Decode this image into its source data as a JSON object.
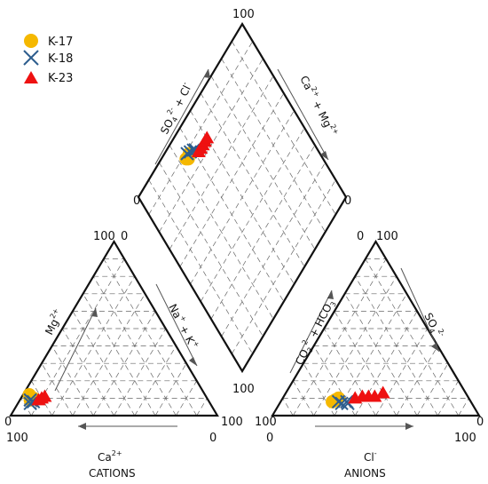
{
  "chart_data": {
    "type": "scatter",
    "subtype": "piper-diagram",
    "grid": true,
    "legend_position": "top-left",
    "series": [
      {
        "name": "K-17",
        "marker": "circle",
        "color": "#f5b800",
        "cations": [
          {
            "Ca": 84,
            "Mg": 10
          },
          {
            "Ca": 86,
            "Mg": 9
          },
          {
            "Ca": 85,
            "Mg": 12
          }
        ],
        "anions": [
          {
            "Cl": 26,
            "SO4": 9
          },
          {
            "Cl": 25,
            "SO4": 8
          },
          {
            "Cl": 27,
            "SO4": 10
          }
        ],
        "diamond": [
          {
            "SO4Cl": 35,
            "CaMg": 87
          },
          {
            "SO4Cl": 34,
            "CaMg": 88
          },
          {
            "SO4Cl": 37,
            "CaMg": 88
          }
        ]
      },
      {
        "name": "K-18",
        "marker": "x",
        "color": "#2e5e8e",
        "cations": [
          {
            "Ca": 85,
            "Mg": 8
          },
          {
            "Ca": 87,
            "Mg": 7
          },
          {
            "Ca": 86,
            "Mg": 9
          }
        ],
        "anions": [
          {
            "Cl": 28,
            "SO4": 8
          },
          {
            "Cl": 30,
            "SO4": 7
          },
          {
            "Cl": 32,
            "SO4": 8
          },
          {
            "Cl": 33,
            "SO4": 7
          }
        ],
        "diamond": [
          {
            "SO4Cl": 36,
            "CaMg": 89
          },
          {
            "SO4Cl": 38,
            "CaMg": 88
          },
          {
            "SO4Cl": 40,
            "CaMg": 87
          },
          {
            "SO4Cl": 41,
            "CaMg": 86
          }
        ]
      },
      {
        "name": "K-23",
        "marker": "triangle",
        "color": "#ee1111",
        "cations": [
          {
            "Ca": 80,
            "Mg": 10
          },
          {
            "Ca": 78,
            "Mg": 11
          },
          {
            "Ca": 82,
            "Mg": 9
          }
        ],
        "anions": [
          {
            "Cl": 35,
            "SO4": 10
          },
          {
            "Cl": 38,
            "SO4": 11
          },
          {
            "Cl": 41,
            "SO4": 11
          },
          {
            "Cl": 44,
            "SO4": 11
          },
          {
            "Cl": 47,
            "SO4": 13
          }
        ],
        "diamond": [
          {
            "SO4Cl": 42,
            "CaMg": 84
          },
          {
            "SO4Cl": 44,
            "CaMg": 84
          },
          {
            "SO4Cl": 46,
            "CaMg": 84
          },
          {
            "SO4Cl": 48,
            "CaMg": 84
          },
          {
            "SO4Cl": 50,
            "CaMg": 84
          }
        ]
      }
    ],
    "ticks": {
      "cation_top": "100",
      "cation_top_right": "0",
      "cation_left_base": "0",
      "cation_right_base": "100",
      "cation_bottom_left": "100",
      "cation_bottom_right": "0",
      "anion_top_left": "0",
      "anion_top": "100",
      "anion_left_base": "100",
      "anion_right_base": "0",
      "anion_bottom_left": "0",
      "anion_bottom_right": "100",
      "diamond_top": "100",
      "diamond_left": "0",
      "diamond_right": "0",
      "diamond_bottom": "100"
    },
    "labels": {
      "cation_bottom": "CATIONS",
      "anion_bottom": "ANIONS"
    }
  }
}
